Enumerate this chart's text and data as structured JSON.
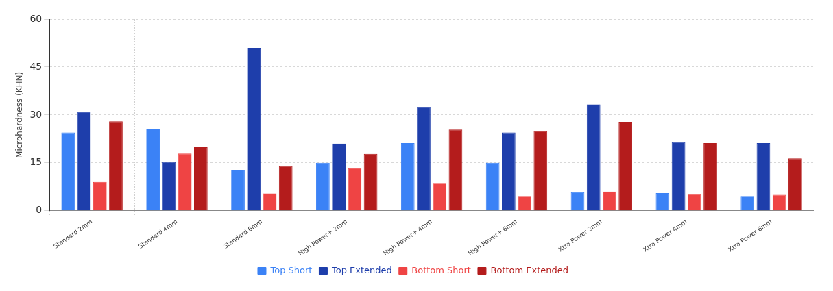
{
  "chart_data": {
    "type": "bar",
    "ylabel": "Microhardness (KHN)",
    "categories": [
      "Standard 2mm",
      "Standard 4mm",
      "Standard 6mm",
      "High Power+ 2mm",
      "High Power+ 4mm",
      "High Power+ 6mm",
      "Xtra Power 2mm",
      "Xtra Power 4mm",
      "Xtra Power 6mm"
    ],
    "series": [
      {
        "name": "Top Short",
        "color": "#3b82f6",
        "values": [
          24.5,
          25.7,
          12.8,
          15,
          21.2,
          15,
          5.8,
          5.5,
          4.6
        ]
      },
      {
        "name": "Top Extended",
        "color": "#1e3eab",
        "values": [
          31,
          15.3,
          51,
          21,
          32.5,
          24.5,
          33.3,
          21.5,
          21.2
        ]
      },
      {
        "name": "Bottom Short",
        "color": "#ef4444",
        "values": [
          9,
          17.9,
          5.4,
          13.3,
          8.7,
          4.6,
          6,
          5.2,
          5
        ]
      },
      {
        "name": "Bottom Extended",
        "color": "#b41c1c",
        "values": [
          28,
          19.9,
          14,
          17.8,
          25.4,
          25,
          27.8,
          21.2,
          16.4
        ]
      }
    ],
    "ylim": [
      0,
      60
    ],
    "yticks": [
      0,
      15,
      30,
      45,
      60
    ],
    "grid": true,
    "legend": "bottom"
  }
}
